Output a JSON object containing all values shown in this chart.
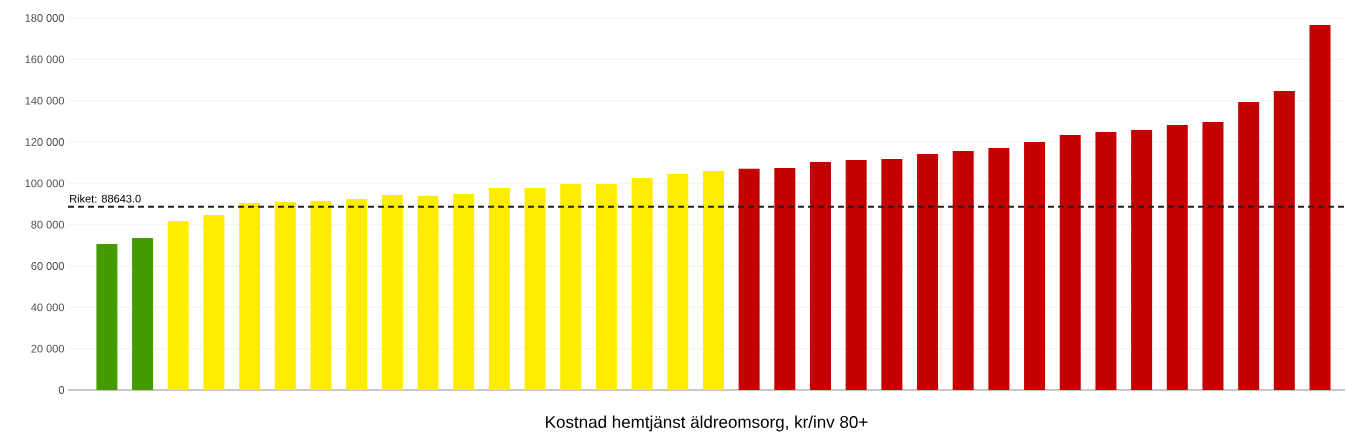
{
  "chart_data": {
    "type": "bar",
    "xlabel": "Kostnad hemtjänst äldreomsorg, kr/inv 80+",
    "categories": [
      null,
      null,
      null,
      null,
      null,
      null,
      null,
      null,
      null,
      null,
      null,
      null,
      null,
      null,
      null,
      null,
      null,
      null,
      null,
      null,
      null,
      null,
      null,
      null,
      null,
      null,
      null,
      null,
      null,
      null,
      null,
      null,
      null,
      null,
      null
    ],
    "values": [
      70600,
      73500,
      81800,
      84700,
      90500,
      91000,
      91400,
      92400,
      94300,
      94000,
      94800,
      97700,
      97700,
      99700,
      99700,
      102600,
      104500,
      106000,
      107000,
      107400,
      110300,
      111300,
      111800,
      114200,
      115700,
      117100,
      120000,
      123400,
      124800,
      125800,
      128200,
      129700,
      139400,
      144700,
      176600
    ],
    "colors": [
      "#459a00",
      "#459a00",
      "#ffed00",
      "#ffed00",
      "#ffed00",
      "#ffed00",
      "#ffed00",
      "#ffed00",
      "#ffed00",
      "#ffed00",
      "#ffed00",
      "#ffed00",
      "#ffed00",
      "#ffed00",
      "#ffed00",
      "#ffed00",
      "#ffed00",
      "#ffed00",
      "#c40000",
      "#c40000",
      "#c40000",
      "#c40000",
      "#c40000",
      "#c40000",
      "#c40000",
      "#c40000",
      "#c40000",
      "#c40000",
      "#c40000",
      "#c40000",
      "#c40000",
      "#c40000",
      "#c40000",
      "#c40000",
      "#c40000"
    ],
    "ylim": [
      0,
      180000
    ],
    "yticks": [
      0,
      {
        "value": 20000,
        "label": "20 000"
      },
      {
        "value": 40000,
        "label": "40 000"
      },
      {
        "value": 60000,
        "label": "60 000"
      },
      {
        "value": 80000,
        "label": "80 000"
      },
      {
        "value": 100000,
        "label": "100 000"
      },
      {
        "value": 120000,
        "label": "120 000"
      },
      {
        "value": 140000,
        "label": "140 000"
      },
      {
        "value": 160000,
        "label": "160 000"
      },
      {
        "value": 180000,
        "label": "180 000"
      }
    ],
    "ref_lines": [
      {
        "axis": "y",
        "value": 88643,
        "label": "Riket: 88643.0",
        "color": "#222222",
        "line_style": "dashed"
      }
    ],
    "grid": "y"
  }
}
